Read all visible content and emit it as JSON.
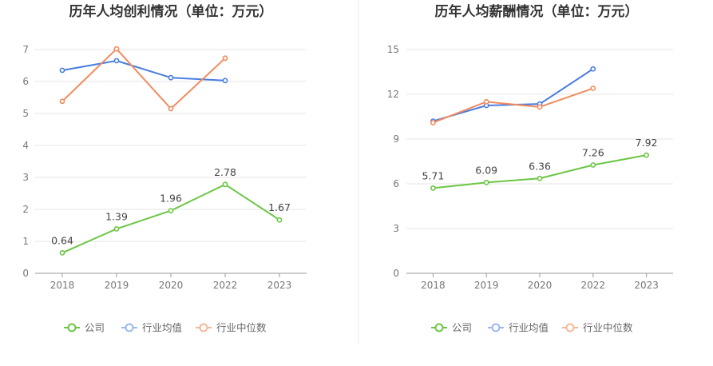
{
  "chart_data": [
    {
      "type": "line",
      "title": "历年人均创利情况（单位：万元）",
      "categories": [
        "2018",
        "2019",
        "2020",
        "2022",
        "2023"
      ],
      "ylim": [
        0,
        7
      ],
      "yticks": [
        "0",
        "1",
        "2",
        "3",
        "4",
        "5",
        "6",
        "7"
      ],
      "grid": true,
      "legend_position": "bottom",
      "series": [
        {
          "name": "公司",
          "color": "#6cc644",
          "values": [
            0.64,
            1.39,
            1.96,
            2.78,
            1.67
          ],
          "labels": [
            "0.64",
            "1.39",
            "1.96",
            "2.78",
            "1.67"
          ]
        },
        {
          "name": "行业均值",
          "color": "#4a7ee0",
          "values": [
            6.35,
            6.65,
            6.12,
            6.03,
            null
          ]
        },
        {
          "name": "行业中位数",
          "color": "#f28b5e",
          "values": [
            5.38,
            7.02,
            5.15,
            6.73,
            null
          ]
        }
      ]
    },
    {
      "type": "line",
      "title": "历年人均薪酬情况（单位：万元）",
      "categories": [
        "2018",
        "2019",
        "2020",
        "2022",
        "2023"
      ],
      "ylim": [
        0,
        15
      ],
      "yticks": [
        "0",
        "3",
        "6",
        "9",
        "12",
        "15"
      ],
      "grid": true,
      "legend_position": "bottom",
      "series": [
        {
          "name": "公司",
          "color": "#6cc644",
          "values": [
            5.71,
            6.09,
            6.36,
            7.26,
            7.92
          ],
          "labels": [
            "5.71",
            "6.09",
            "6.36",
            "7.26",
            "7.92"
          ]
        },
        {
          "name": "行业均值",
          "color": "#4a7ee0",
          "values": [
            10.2,
            11.25,
            11.35,
            13.7,
            null
          ]
        },
        {
          "name": "行业中位数",
          "color": "#f28b5e",
          "values": [
            10.1,
            11.5,
            11.15,
            12.4,
            null
          ]
        }
      ]
    }
  ]
}
